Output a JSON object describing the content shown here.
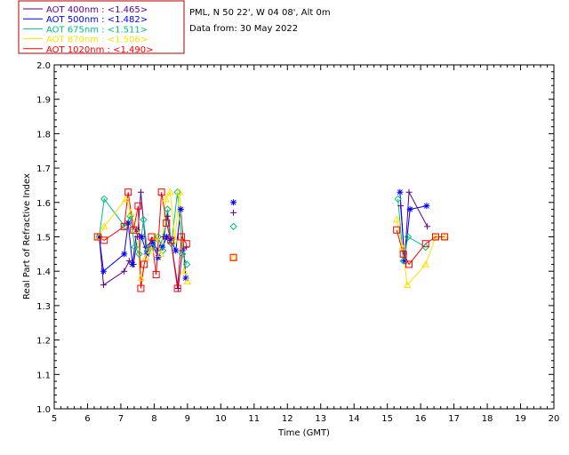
{
  "legend_box": {
    "border_color": "#b00000"
  },
  "header": {
    "station": "PML, N 50 22', W 04 08', Alt 0m",
    "date": "Data from: 30 May 2022"
  },
  "chart_data": {
    "type": "scatter",
    "xlabel": "Time (GMT)",
    "ylabel": "Real Part of Refractive Index",
    "xlim": [
      5,
      20
    ],
    "ylim": [
      1.0,
      2.0
    ],
    "x_ticks": [
      "5",
      "6",
      "7",
      "8",
      "9",
      "10",
      "11",
      "12",
      "13",
      "14",
      "15",
      "16",
      "17",
      "18",
      "19",
      "20"
    ],
    "y_ticks": [
      "1.0",
      "1.1",
      "1.2",
      "1.3",
      "1.4",
      "1.5",
      "1.6",
      "1.7",
      "1.8",
      "1.9",
      "2.0"
    ],
    "grid": false,
    "legend_position": "top-left, outside plot",
    "series": [
      {
        "name": "AOT  400nm : <1.465>",
        "color": "#5a0090",
        "marker": "plus",
        "points": [
          [
            6.35,
            1.5
          ],
          [
            6.48,
            1.36
          ],
          [
            7.1,
            1.4
          ],
          [
            7.25,
            1.43
          ],
          [
            7.38,
            1.42
          ],
          [
            7.5,
            1.5
          ],
          [
            7.6,
            1.63
          ],
          [
            7.75,
            1.47
          ],
          [
            7.95,
            1.49
          ],
          [
            8.1,
            1.46
          ],
          [
            8.28,
            1.5
          ],
          [
            8.4,
            1.56
          ],
          [
            8.5,
            1.49
          ],
          [
            8.72,
            1.35
          ],
          [
            8.85,
            1.46
          ],
          [
            8.97,
            1.47
          ],
          [
            10.38,
            1.57
          ],
          [
            15.4,
            1.59
          ],
          [
            15.52,
            1.43
          ],
          [
            15.65,
            1.63
          ],
          [
            16.2,
            1.53
          ]
        ],
        "breaks": [
          16,
          17
        ]
      },
      {
        "name": "AOT  500nm : <1.482>",
        "color": "#0000ff",
        "marker": "asterisk",
        "points": [
          [
            6.35,
            1.5
          ],
          [
            6.48,
            1.4
          ],
          [
            7.1,
            1.45
          ],
          [
            7.22,
            1.54
          ],
          [
            7.35,
            1.42
          ],
          [
            7.48,
            1.52
          ],
          [
            7.62,
            1.5
          ],
          [
            7.78,
            1.45
          ],
          [
            7.95,
            1.48
          ],
          [
            8.12,
            1.44
          ],
          [
            8.25,
            1.47
          ],
          [
            8.38,
            1.5
          ],
          [
            8.5,
            1.49
          ],
          [
            8.65,
            1.46
          ],
          [
            8.8,
            1.58
          ],
          [
            8.95,
            1.38
          ],
          [
            10.38,
            1.6
          ],
          [
            15.38,
            1.63
          ],
          [
            15.52,
            1.43
          ],
          [
            15.68,
            1.58
          ],
          [
            16.18,
            1.59
          ]
        ],
        "breaks": [
          16,
          17
        ]
      },
      {
        "name": "AOT  675nm : <1.511>",
        "color": "#00c080",
        "marker": "diamond",
        "points": [
          [
            6.35,
            1.5
          ],
          [
            6.5,
            1.61
          ],
          [
            7.12,
            1.53
          ],
          [
            7.28,
            1.56
          ],
          [
            7.42,
            1.47
          ],
          [
            7.55,
            1.45
          ],
          [
            7.68,
            1.55
          ],
          [
            7.8,
            1.46
          ],
          [
            7.95,
            1.47
          ],
          [
            8.12,
            1.5
          ],
          [
            8.26,
            1.46
          ],
          [
            8.4,
            1.58
          ],
          [
            8.52,
            1.48
          ],
          [
            8.7,
            1.63
          ],
          [
            8.85,
            1.45
          ],
          [
            8.98,
            1.42
          ],
          [
            10.38,
            1.53
          ],
          [
            15.32,
            1.61
          ],
          [
            15.48,
            1.43
          ],
          [
            15.62,
            1.5
          ],
          [
            16.15,
            1.47
          ]
        ],
        "breaks": [
          16,
          17
        ]
      },
      {
        "name": "AOT  870nm : <1.506>",
        "color": "#ffe000",
        "marker": "triangle",
        "points": [
          [
            6.35,
            1.5
          ],
          [
            6.5,
            1.53
          ],
          [
            7.15,
            1.61
          ],
          [
            7.3,
            1.57
          ],
          [
            7.45,
            1.52
          ],
          [
            7.6,
            1.38
          ],
          [
            7.75,
            1.44
          ],
          [
            7.9,
            1.46
          ],
          [
            8.05,
            1.5
          ],
          [
            8.2,
            1.45
          ],
          [
            8.35,
            1.61
          ],
          [
            8.48,
            1.63
          ],
          [
            8.62,
            1.49
          ],
          [
            8.76,
            1.63
          ],
          [
            8.9,
            1.4
          ],
          [
            9.0,
            1.37
          ],
          [
            10.38,
            1.44
          ],
          [
            15.28,
            1.55
          ],
          [
            15.45,
            1.47
          ],
          [
            15.6,
            1.36
          ],
          [
            16.15,
            1.42
          ],
          [
            16.45,
            1.5
          ],
          [
            16.72,
            1.5
          ]
        ],
        "breaks": [
          16,
          17
        ]
      },
      {
        "name": "AOT 1020nm : <1.490>",
        "color": "#ff0000",
        "marker": "square",
        "points": [
          [
            6.3,
            1.5
          ],
          [
            6.5,
            1.49
          ],
          [
            7.1,
            1.53
          ],
          [
            7.22,
            1.63
          ],
          [
            7.38,
            1.52
          ],
          [
            7.52,
            1.59
          ],
          [
            7.6,
            1.35
          ],
          [
            7.7,
            1.42
          ],
          [
            7.92,
            1.5
          ],
          [
            8.06,
            1.39
          ],
          [
            8.22,
            1.63
          ],
          [
            8.37,
            1.54
          ],
          [
            8.5,
            1.49
          ],
          [
            8.7,
            1.35
          ],
          [
            8.82,
            1.5
          ],
          [
            8.97,
            1.48
          ],
          [
            10.38,
            1.44
          ],
          [
            15.28,
            1.52
          ],
          [
            15.48,
            1.45
          ],
          [
            15.65,
            1.42
          ],
          [
            16.15,
            1.48
          ],
          [
            16.45,
            1.5
          ],
          [
            16.72,
            1.5
          ]
        ],
        "breaks": [
          16,
          17
        ]
      }
    ]
  }
}
